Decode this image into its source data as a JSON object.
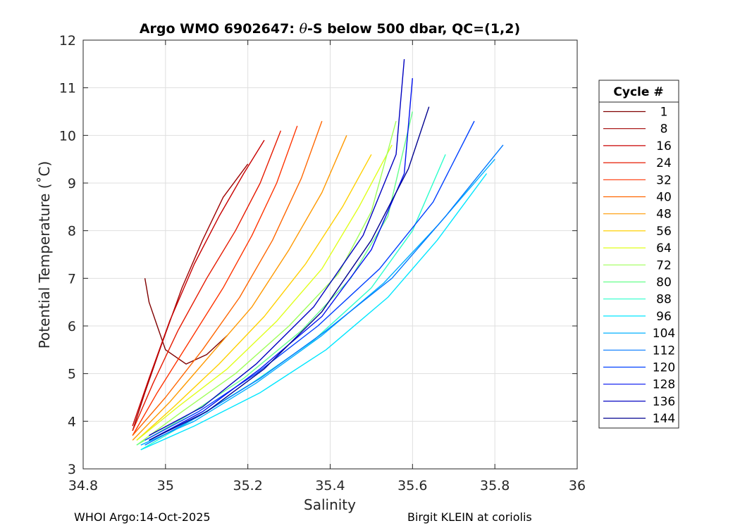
{
  "chart_data": {
    "type": "line",
    "title": "Argo WMO 6902647: θ-S below 500 dbar,  QC=(1,2)",
    "title_prefix": "Argo WMO 6902647: ",
    "title_theta": "θ",
    "title_suffix": "-S below 500 dbar,  QC=(1,2)",
    "xlabel": "Salinity",
    "ylabel": "Potential Temperature (˚C)",
    "xlim": [
      34.8,
      36
    ],
    "ylim": [
      3,
      12
    ],
    "xticks": [
      "34.8",
      "35",
      "35.2",
      "35.4",
      "35.6",
      "35.8",
      "36"
    ],
    "yticks": [
      "3",
      "4",
      "5",
      "6",
      "7",
      "8",
      "9",
      "10",
      "11",
      "12"
    ],
    "grid": true,
    "legend": {
      "title": "Cycle #",
      "placement": "outside-right",
      "entries": [
        {
          "label": "1",
          "color": "#800000"
        },
        {
          "label": "8",
          "color": "#a00000"
        },
        {
          "label": "16",
          "color": "#c80000"
        },
        {
          "label": "24",
          "color": "#e61a00"
        },
        {
          "label": "32",
          "color": "#ff3300"
        },
        {
          "label": "40",
          "color": "#ff6600"
        },
        {
          "label": "48",
          "color": "#ff9900"
        },
        {
          "label": "56",
          "color": "#ffd000"
        },
        {
          "label": "64",
          "color": "#e0ff1a"
        },
        {
          "label": "72",
          "color": "#a0ff5a"
        },
        {
          "label": "80",
          "color": "#66ff8c"
        },
        {
          "label": "88",
          "color": "#2bffcc"
        },
        {
          "label": "96",
          "color": "#00e6ff"
        },
        {
          "label": "104",
          "color": "#00b0ff"
        },
        {
          "label": "112",
          "color": "#0078ff"
        },
        {
          "label": "120",
          "color": "#0040ff"
        },
        {
          "label": "128",
          "color": "#0010f0"
        },
        {
          "label": "136",
          "color": "#0000c0"
        },
        {
          "label": "144",
          "color": "#00008f"
        }
      ]
    },
    "series": [
      {
        "name": "1",
        "x": [
          34.95,
          34.96,
          34.98,
          35.0,
          35.05,
          35.1,
          35.15
        ],
        "y": [
          7.0,
          6.5,
          6.0,
          5.5,
          5.2,
          5.4,
          5.8
        ]
      },
      {
        "name": "8",
        "x": [
          34.92,
          34.95,
          34.99,
          35.04,
          35.09,
          35.14,
          35.2
        ],
        "y": [
          3.8,
          4.6,
          5.6,
          6.8,
          7.8,
          8.7,
          9.4
        ]
      },
      {
        "name": "16",
        "x": [
          34.92,
          34.96,
          35.01,
          35.07,
          35.13,
          35.19,
          35.24
        ],
        "y": [
          3.9,
          4.9,
          6.1,
          7.3,
          8.3,
          9.2,
          9.9
        ]
      },
      {
        "name": "24",
        "x": [
          34.92,
          34.97,
          35.03,
          35.1,
          35.17,
          35.23,
          35.28
        ],
        "y": [
          3.8,
          4.8,
          5.9,
          7.0,
          8.0,
          9.0,
          10.1
        ]
      },
      {
        "name": "32",
        "x": [
          34.92,
          34.98,
          35.06,
          35.14,
          35.21,
          35.27,
          35.32
        ],
        "y": [
          3.7,
          4.6,
          5.7,
          6.8,
          7.9,
          9.0,
          10.2
        ]
      },
      {
        "name": "40",
        "x": [
          34.92,
          35.0,
          35.09,
          35.18,
          35.26,
          35.33,
          35.38
        ],
        "y": [
          3.7,
          4.5,
          5.5,
          6.6,
          7.8,
          9.1,
          10.3
        ]
      },
      {
        "name": "48",
        "x": [
          34.92,
          35.01,
          35.11,
          35.21,
          35.3,
          35.38,
          35.44
        ],
        "y": [
          3.6,
          4.4,
          5.4,
          6.4,
          7.6,
          8.8,
          10.0
        ]
      },
      {
        "name": "56",
        "x": [
          34.93,
          35.02,
          35.13,
          35.24,
          35.34,
          35.43,
          35.5
        ],
        "y": [
          3.6,
          4.3,
          5.2,
          6.2,
          7.3,
          8.5,
          9.6
        ]
      },
      {
        "name": "64",
        "x": [
          34.93,
          35.03,
          35.15,
          35.27,
          35.38,
          35.47,
          35.55
        ],
        "y": [
          3.6,
          4.3,
          5.1,
          6.1,
          7.2,
          8.5,
          9.8
        ]
      },
      {
        "name": "72",
        "x": [
          34.93,
          35.04,
          35.17,
          35.3,
          35.42,
          35.5,
          35.56
        ],
        "y": [
          3.5,
          4.2,
          5.0,
          6.0,
          7.1,
          8.4,
          10.3
        ]
      },
      {
        "name": "80",
        "x": [
          34.93,
          35.05,
          35.19,
          35.33,
          35.45,
          35.54,
          35.6
        ],
        "y": [
          3.5,
          4.1,
          4.9,
          5.9,
          7.0,
          8.3,
          10.5
        ]
      },
      {
        "name": "88",
        "x": [
          34.94,
          35.06,
          35.21,
          35.36,
          35.5,
          35.6,
          35.68
        ],
        "y": [
          3.4,
          4.0,
          4.8,
          5.7,
          6.8,
          8.0,
          9.6
        ]
      },
      {
        "name": "96",
        "x": [
          34.94,
          35.07,
          35.23,
          35.39,
          35.54,
          35.66,
          35.78
        ],
        "y": [
          3.4,
          3.9,
          4.6,
          5.5,
          6.6,
          7.8,
          9.2
        ]
      },
      {
        "name": "104",
        "x": [
          34.94,
          35.07,
          35.22,
          35.38,
          35.53,
          35.66,
          35.8
        ],
        "y": [
          3.5,
          4.0,
          4.8,
          5.8,
          6.9,
          8.1,
          9.5
        ]
      },
      {
        "name": "112",
        "x": [
          34.95,
          35.08,
          35.23,
          35.39,
          35.55,
          35.68,
          35.82
        ],
        "y": [
          3.5,
          4.1,
          4.9,
          5.9,
          7.0,
          8.3,
          9.8
        ]
      },
      {
        "name": "120",
        "x": [
          34.95,
          35.08,
          35.22,
          35.37,
          35.52,
          35.65,
          35.75
        ],
        "y": [
          3.6,
          4.2,
          5.0,
          6.0,
          7.2,
          8.6,
          10.3
        ]
      },
      {
        "name": "128",
        "x": [
          34.96,
          35.09,
          35.23,
          35.38,
          35.5,
          35.58,
          35.6
        ],
        "y": [
          3.6,
          4.2,
          5.1,
          6.2,
          7.6,
          9.2,
          11.2
        ]
      },
      {
        "name": "136",
        "x": [
          34.96,
          35.09,
          35.22,
          35.36,
          35.48,
          35.56,
          35.58
        ],
        "y": [
          3.7,
          4.3,
          5.2,
          6.4,
          7.9,
          9.6,
          11.6
        ]
      },
      {
        "name": "144",
        "x": [
          34.96,
          35.1,
          35.24,
          35.38,
          35.5,
          35.59,
          35.64
        ],
        "y": [
          3.6,
          4.2,
          5.1,
          6.3,
          7.8,
          9.3,
          10.6
        ]
      }
    ]
  },
  "footer": {
    "left": "WHOI Argo:14-Oct-2025",
    "right": "Birgit KLEIN at coriolis"
  }
}
